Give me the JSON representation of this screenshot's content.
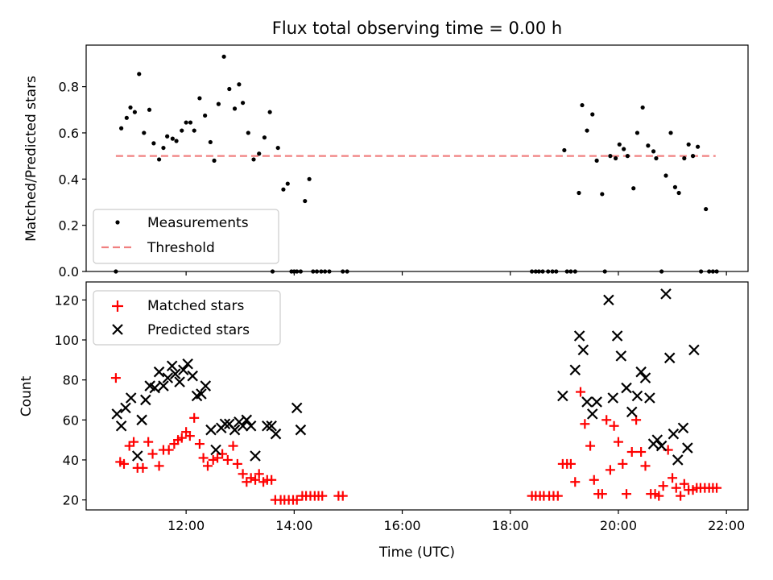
{
  "chart_data": [
    {
      "type": "scatter",
      "title": "Flux total observing time = 0.00 h",
      "ylabel": "Matched/Predicted stars",
      "xlabel": "",
      "xlim": [
        10.15,
        22.4
      ],
      "ylim": [
        0,
        0.98
      ],
      "yticks": [
        0.0,
        0.2,
        0.4,
        0.6,
        0.8
      ],
      "ytick_labels": [
        "0.0",
        "0.2",
        "0.4",
        "0.6",
        "0.8"
      ],
      "legend": {
        "position": "lower-left",
        "entries": [
          "Measurements",
          "Threshold"
        ]
      },
      "threshold": {
        "name": "Threshold",
        "value": 0.5,
        "x_range": [
          10.7,
          21.8
        ],
        "color": "#f08080"
      },
      "series": [
        {
          "name": "Measurements",
          "color": "#000000",
          "points": [
            [
              10.7,
              0.0
            ],
            [
              10.8,
              0.62
            ],
            [
              10.9,
              0.665
            ],
            [
              10.97,
              0.71
            ],
            [
              11.05,
              0.69
            ],
            [
              11.13,
              0.855
            ],
            [
              11.22,
              0.6
            ],
            [
              11.32,
              0.7
            ],
            [
              11.4,
              0.555
            ],
            [
              11.5,
              0.485
            ],
            [
              11.58,
              0.535
            ],
            [
              11.65,
              0.585
            ],
            [
              11.75,
              0.575
            ],
            [
              11.82,
              0.565
            ],
            [
              11.92,
              0.61
            ],
            [
              12.0,
              0.645
            ],
            [
              12.08,
              0.645
            ],
            [
              12.15,
              0.61
            ],
            [
              12.25,
              0.75
            ],
            [
              12.35,
              0.675
            ],
            [
              12.45,
              0.56
            ],
            [
              12.52,
              0.48
            ],
            [
              12.6,
              0.725
            ],
            [
              12.7,
              0.93
            ],
            [
              12.8,
              0.79
            ],
            [
              12.9,
              0.705
            ],
            [
              12.98,
              0.81
            ],
            [
              13.05,
              0.73
            ],
            [
              13.15,
              0.6
            ],
            [
              13.25,
              0.485
            ],
            [
              13.35,
              0.51
            ],
            [
              13.45,
              0.58
            ],
            [
              13.55,
              0.69
            ],
            [
              13.6,
              0.0
            ],
            [
              13.7,
              0.535
            ],
            [
              13.8,
              0.355
            ],
            [
              13.88,
              0.38
            ],
            [
              13.95,
              0.0
            ],
            [
              14.0,
              0.0
            ],
            [
              14.05,
              0.0
            ],
            [
              14.12,
              0.0
            ],
            [
              14.2,
              0.305
            ],
            [
              14.28,
              0.4
            ],
            [
              14.35,
              0.0
            ],
            [
              14.42,
              0.0
            ],
            [
              14.5,
              0.0
            ],
            [
              14.57,
              0.0
            ],
            [
              14.65,
              0.0
            ],
            [
              14.9,
              0.0
            ],
            [
              14.98,
              0.0
            ],
            [
              18.4,
              0.0
            ],
            [
              18.47,
              0.0
            ],
            [
              18.53,
              0.0
            ],
            [
              18.6,
              0.0
            ],
            [
              18.7,
              0.0
            ],
            [
              18.78,
              0.0
            ],
            [
              18.85,
              0.0
            ],
            [
              19.0,
              0.525
            ],
            [
              19.05,
              0.0
            ],
            [
              19.12,
              0.0
            ],
            [
              19.2,
              0.0
            ],
            [
              19.27,
              0.34
            ],
            [
              19.33,
              0.72
            ],
            [
              19.42,
              0.61
            ],
            [
              19.52,
              0.68
            ],
            [
              19.6,
              0.48
            ],
            [
              19.7,
              0.335
            ],
            [
              19.75,
              0.0
            ],
            [
              19.85,
              0.5
            ],
            [
              19.95,
              0.49
            ],
            [
              20.02,
              0.55
            ],
            [
              20.1,
              0.53
            ],
            [
              20.17,
              0.5
            ],
            [
              20.28,
              0.36
            ],
            [
              20.35,
              0.6
            ],
            [
              20.45,
              0.71
            ],
            [
              20.55,
              0.545
            ],
            [
              20.65,
              0.52
            ],
            [
              20.7,
              0.49
            ],
            [
              20.8,
              0.0
            ],
            [
              20.88,
              0.415
            ],
            [
              20.97,
              0.6
            ],
            [
              21.05,
              0.365
            ],
            [
              21.12,
              0.34
            ],
            [
              21.22,
              0.49
            ],
            [
              21.3,
              0.55
            ],
            [
              21.38,
              0.5
            ],
            [
              21.47,
              0.54
            ],
            [
              21.53,
              0.0
            ],
            [
              21.62,
              0.27
            ],
            [
              21.68,
              0.0
            ],
            [
              21.75,
              0.0
            ],
            [
              21.82,
              0.0
            ]
          ]
        }
      ]
    },
    {
      "type": "scatter",
      "title": "",
      "ylabel": "Count",
      "xlabel": "Time (UTC)",
      "xlim": [
        10.15,
        22.4
      ],
      "ylim": [
        15,
        129
      ],
      "yticks": [
        20,
        40,
        60,
        80,
        100,
        120
      ],
      "ytick_labels": [
        "20",
        "40",
        "60",
        "80",
        "100",
        "120"
      ],
      "xticks": [
        12,
        14,
        16,
        18,
        20,
        22
      ],
      "xtick_labels": [
        "12:00",
        "14:00",
        "16:00",
        "18:00",
        "20:00",
        "22:00"
      ],
      "legend": {
        "position": "top-left",
        "entries": [
          "Matched stars",
          "Predicted stars"
        ]
      },
      "series": [
        {
          "name": "Matched stars",
          "marker": "plus",
          "color": "#ff0000",
          "points": [
            [
              10.7,
              81
            ],
            [
              10.78,
              39
            ],
            [
              10.85,
              38
            ],
            [
              10.95,
              47
            ],
            [
              11.03,
              49
            ],
            [
              11.1,
              36
            ],
            [
              11.2,
              36
            ],
            [
              11.3,
              49
            ],
            [
              11.38,
              43
            ],
            [
              11.5,
              37
            ],
            [
              11.58,
              45
            ],
            [
              11.68,
              45
            ],
            [
              11.78,
              48
            ],
            [
              11.85,
              50
            ],
            [
              11.92,
              51
            ],
            [
              12.0,
              54
            ],
            [
              12.07,
              52
            ],
            [
              12.15,
              61
            ],
            [
              12.25,
              48
            ],
            [
              12.32,
              41
            ],
            [
              12.4,
              37
            ],
            [
              12.5,
              40
            ],
            [
              12.58,
              41
            ],
            [
              12.67,
              43
            ],
            [
              12.77,
              40
            ],
            [
              12.87,
              47
            ],
            [
              12.95,
              38
            ],
            [
              13.05,
              33
            ],
            [
              13.12,
              29
            ],
            [
              13.2,
              31
            ],
            [
              13.28,
              30
            ],
            [
              13.35,
              33
            ],
            [
              13.43,
              29
            ],
            [
              13.5,
              30
            ],
            [
              13.58,
              30
            ],
            [
              13.65,
              20
            ],
            [
              13.75,
              20
            ],
            [
              13.82,
              20
            ],
            [
              13.9,
              20
            ],
            [
              13.98,
              20
            ],
            [
              14.05,
              20
            ],
            [
              14.15,
              22
            ],
            [
              14.22,
              22
            ],
            [
              14.3,
              22
            ],
            [
              14.38,
              22
            ],
            [
              14.45,
              22
            ],
            [
              14.52,
              22
            ],
            [
              14.82,
              22
            ],
            [
              14.9,
              22
            ],
            [
              18.4,
              22
            ],
            [
              18.47,
              22
            ],
            [
              18.55,
              22
            ],
            [
              18.62,
              22
            ],
            [
              18.72,
              22
            ],
            [
              18.8,
              22
            ],
            [
              18.88,
              22
            ],
            [
              18.97,
              38
            ],
            [
              19.05,
              38
            ],
            [
              19.12,
              38
            ],
            [
              19.2,
              29
            ],
            [
              19.3,
              74
            ],
            [
              19.38,
              58
            ],
            [
              19.48,
              47
            ],
            [
              19.55,
              30
            ],
            [
              19.63,
              23
            ],
            [
              19.7,
              23
            ],
            [
              19.78,
              60
            ],
            [
              19.85,
              35
            ],
            [
              19.92,
              57
            ],
            [
              20.0,
              49
            ],
            [
              20.08,
              38
            ],
            [
              20.15,
              23
            ],
            [
              20.25,
              44
            ],
            [
              20.33,
              60
            ],
            [
              20.42,
              44
            ],
            [
              20.5,
              37
            ],
            [
              20.6,
              23
            ],
            [
              20.68,
              23
            ],
            [
              20.75,
              22
            ],
            [
              20.83,
              27
            ],
            [
              20.92,
              45
            ],
            [
              21.0,
              31
            ],
            [
              21.07,
              26
            ],
            [
              21.15,
              22
            ],
            [
              21.22,
              28
            ],
            [
              21.3,
              25
            ],
            [
              21.38,
              25
            ],
            [
              21.45,
              26
            ],
            [
              21.52,
              26
            ],
            [
              21.6,
              26
            ],
            [
              21.68,
              26
            ],
            [
              21.75,
              26
            ],
            [
              21.82,
              26
            ]
          ]
        },
        {
          "name": "Predicted stars",
          "marker": "x",
          "color": "#000000",
          "points": [
            [
              10.72,
              63
            ],
            [
              10.8,
              57
            ],
            [
              10.88,
              66
            ],
            [
              10.98,
              71
            ],
            [
              11.1,
              42
            ],
            [
              11.18,
              60
            ],
            [
              11.25,
              70
            ],
            [
              11.33,
              77
            ],
            [
              11.42,
              76
            ],
            [
              11.5,
              84
            ],
            [
              11.58,
              77
            ],
            [
              11.66,
              81
            ],
            [
              11.74,
              87
            ],
            [
              11.8,
              83
            ],
            [
              11.88,
              79
            ],
            [
              11.95,
              85
            ],
            [
              12.03,
              88
            ],
            [
              12.12,
              82
            ],
            [
              12.2,
              72
            ],
            [
              12.28,
              73
            ],
            [
              12.36,
              77
            ],
            [
              12.46,
              55
            ],
            [
              12.55,
              45
            ],
            [
              12.65,
              56
            ],
            [
              12.72,
              58
            ],
            [
              12.8,
              58
            ],
            [
              12.9,
              55
            ],
            [
              12.98,
              59
            ],
            [
              13.05,
              57
            ],
            [
              13.12,
              60
            ],
            [
              13.2,
              57
            ],
            [
              13.28,
              42
            ],
            [
              13.5,
              57
            ],
            [
              13.58,
              57
            ],
            [
              13.66,
              53
            ],
            [
              14.05,
              66
            ],
            [
              14.12,
              55
            ],
            [
              18.97,
              72
            ],
            [
              19.2,
              85
            ],
            [
              19.28,
              102
            ],
            [
              19.35,
              95
            ],
            [
              19.42,
              69
            ],
            [
              19.52,
              63
            ],
            [
              19.6,
              69
            ],
            [
              19.82,
              120
            ],
            [
              19.9,
              71
            ],
            [
              19.98,
              102
            ],
            [
              20.05,
              92
            ],
            [
              20.15,
              76
            ],
            [
              20.25,
              64
            ],
            [
              20.35,
              72
            ],
            [
              20.42,
              84
            ],
            [
              20.5,
              81
            ],
            [
              20.58,
              71
            ],
            [
              20.65,
              48
            ],
            [
              20.72,
              50
            ],
            [
              20.8,
              47
            ],
            [
              20.88,
              123
            ],
            [
              20.95,
              91
            ],
            [
              21.02,
              53
            ],
            [
              21.1,
              40
            ],
            [
              21.2,
              56
            ],
            [
              21.28,
              46
            ],
            [
              21.4,
              95
            ]
          ]
        }
      ]
    }
  ]
}
